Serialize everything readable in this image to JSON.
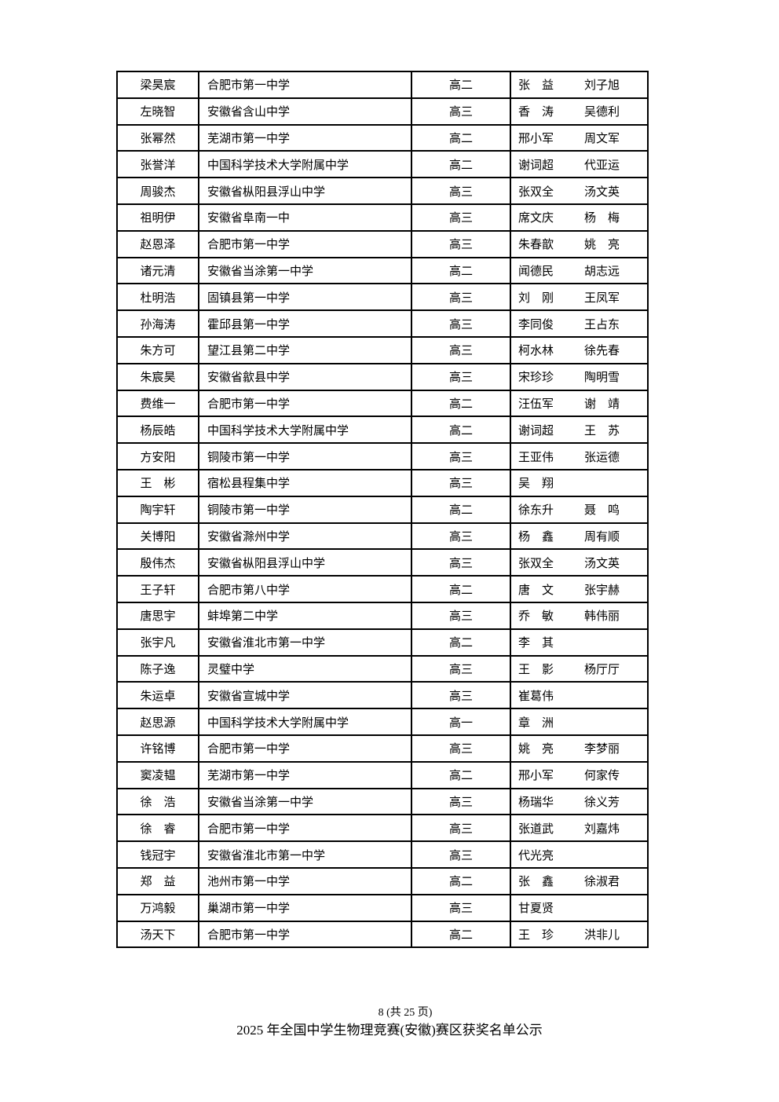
{
  "rows": [
    {
      "name": "梁昊宸",
      "school": "合肥市第一中学",
      "grade": "高二",
      "coach1": "张　益",
      "coach2": "刘子旭"
    },
    {
      "name": "左晓智",
      "school": "安徽省含山中学",
      "grade": "高三",
      "coach1": "香　涛",
      "coach2": "吴德利"
    },
    {
      "name": "张幂然",
      "school": "芜湖市第一中学",
      "grade": "高二",
      "coach1": "邢小军",
      "coach2": "周文军"
    },
    {
      "name": "张誉洋",
      "school": "中国科学技术大学附属中学",
      "grade": "高二",
      "coach1": "谢词超",
      "coach2": "代亚运"
    },
    {
      "name": "周骏杰",
      "school": "安徽省枞阳县浮山中学",
      "grade": "高三",
      "coach1": "张双全",
      "coach2": "汤文英"
    },
    {
      "name": "祖明伊",
      "school": "安徽省阜南一中",
      "grade": "高三",
      "coach1": "席文庆",
      "coach2": "杨　梅"
    },
    {
      "name": "赵恩泽",
      "school": "合肥市第一中学",
      "grade": "高三",
      "coach1": "朱春歆",
      "coach2": "姚　亮"
    },
    {
      "name": "诸元清",
      "school": "安徽省当涂第一中学",
      "grade": "高二",
      "coach1": "闻德民",
      "coach2": "胡志远"
    },
    {
      "name": "杜明浩",
      "school": "固镇县第一中学",
      "grade": "高三",
      "coach1": "刘　刚",
      "coach2": "王凤军"
    },
    {
      "name": "孙海涛",
      "school": "霍邱县第一中学",
      "grade": "高三",
      "coach1": "李同俊",
      "coach2": "王占东"
    },
    {
      "name": "朱方可",
      "school": "望江县第二中学",
      "grade": "高三",
      "coach1": "柯水林",
      "coach2": "徐先春"
    },
    {
      "name": "朱宸昊",
      "school": "安徽省歙县中学",
      "grade": "高三",
      "coach1": "宋珍珍",
      "coach2": "陶明雪"
    },
    {
      "name": "费维一",
      "school": "合肥市第一中学",
      "grade": "高二",
      "coach1": "汪伍军",
      "coach2": "谢　靖"
    },
    {
      "name": "杨辰皓",
      "school": "中国科学技术大学附属中学",
      "grade": "高二",
      "coach1": "谢词超",
      "coach2": "王　苏"
    },
    {
      "name": "方安阳",
      "school": "铜陵市第一中学",
      "grade": "高三",
      "coach1": "王亚伟",
      "coach2": "张运德"
    },
    {
      "name": "王　彬",
      "school": "宿松县程集中学",
      "grade": "高三",
      "coach1": "吴　翔",
      "coach2": ""
    },
    {
      "name": "陶宇轩",
      "school": "铜陵市第一中学",
      "grade": "高二",
      "coach1": "徐东升",
      "coach2": "聂　鸣"
    },
    {
      "name": "关博阳",
      "school": "安徽省滁州中学",
      "grade": "高三",
      "coach1": "杨　鑫",
      "coach2": "周有顺"
    },
    {
      "name": "殷伟杰",
      "school": "安徽省枞阳县浮山中学",
      "grade": "高三",
      "coach1": "张双全",
      "coach2": "汤文英"
    },
    {
      "name": "王子轩",
      "school": "合肥市第八中学",
      "grade": "高二",
      "coach1": "唐　文",
      "coach2": "张宇赫"
    },
    {
      "name": "唐思宇",
      "school": "蚌埠第二中学",
      "grade": "高三",
      "coach1": "乔　敏",
      "coach2": "韩伟丽"
    },
    {
      "name": "张宇凡",
      "school": "安徽省淮北市第一中学",
      "grade": "高二",
      "coach1": "李　其",
      "coach2": ""
    },
    {
      "name": "陈子逸",
      "school": "灵璧中学",
      "grade": "高三",
      "coach1": "王　影",
      "coach2": "杨厅厅"
    },
    {
      "name": "朱运卓",
      "school": "安徽省宣城中学",
      "grade": "高三",
      "coach1": "崔葛伟",
      "coach2": ""
    },
    {
      "name": "赵思源",
      "school": "中国科学技术大学附属中学",
      "grade": "高一",
      "coach1": "章　洲",
      "coach2": ""
    },
    {
      "name": "许铭博",
      "school": "合肥市第一中学",
      "grade": "高三",
      "coach1": "姚　亮",
      "coach2": "李梦丽"
    },
    {
      "name": "窦凌韫",
      "school": "芜湖市第一中学",
      "grade": "高二",
      "coach1": "邢小军",
      "coach2": "何家传"
    },
    {
      "name": "徐　浩",
      "school": "安徽省当涂第一中学",
      "grade": "高三",
      "coach1": "杨瑞华",
      "coach2": "徐义芳"
    },
    {
      "name": "徐　睿",
      "school": "合肥市第一中学",
      "grade": "高三",
      "coach1": "张道武",
      "coach2": "刘嘉炜"
    },
    {
      "name": "钱冠宇",
      "school": "安徽省淮北市第一中学",
      "grade": "高三",
      "coach1": "代光亮",
      "coach2": ""
    },
    {
      "name": "郑　益",
      "school": "池州市第一中学",
      "grade": "高二",
      "coach1": "张　鑫",
      "coach2": "徐淑君"
    },
    {
      "name": "万鸿毅",
      "school": "巢湖市第一中学",
      "grade": "高三",
      "coach1": "甘夏贤",
      "coach2": ""
    },
    {
      "name": "汤天下",
      "school": "合肥市第一中学",
      "grade": "高二",
      "coach1": "王　珍",
      "coach2": "洪非儿"
    }
  ],
  "footer": {
    "page": "8  (共 25 页)",
    "title": "2025 年全国中学生物理竞赛(安徽)赛区获奖名单公示"
  }
}
